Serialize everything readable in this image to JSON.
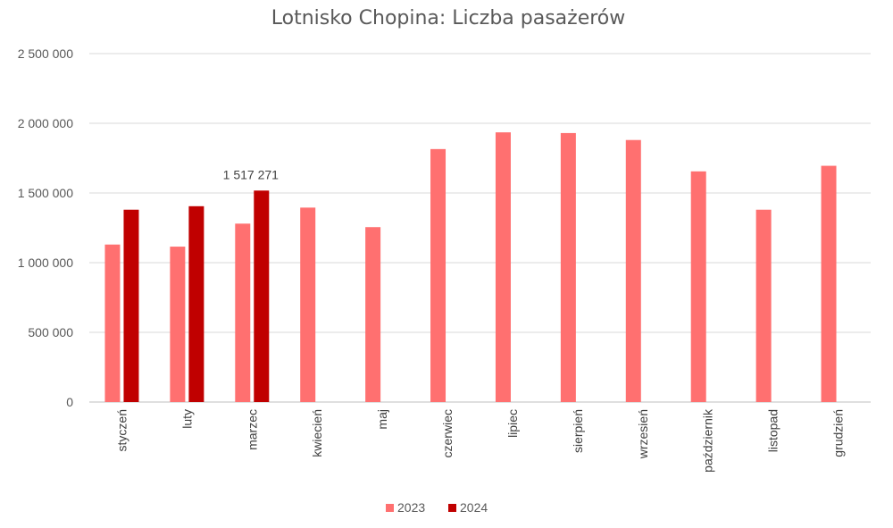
{
  "chart_data": {
    "type": "bar",
    "title": "Lotnisko Chopina: Liczba pasażerów",
    "categories": [
      "styczeń",
      "luty",
      "marzec",
      "kwiecień",
      "maj",
      "czerwiec",
      "lipiec",
      "sierpień",
      "wrzesień",
      "październik",
      "listopad",
      "grudzień"
    ],
    "series": [
      {
        "name": "2023",
        "color": "#ff7070",
        "values": [
          1130000,
          1115000,
          1280000,
          1395000,
          1255000,
          1815000,
          1935000,
          1930000,
          1880000,
          1655000,
          1380000,
          1695000
        ]
      },
      {
        "name": "2024",
        "color": "#c00000",
        "values": [
          1380000,
          1405000,
          1517271,
          null,
          null,
          null,
          null,
          null,
          null,
          null,
          null,
          null
        ]
      }
    ],
    "ylim": [
      0,
      2500000
    ],
    "yticks": [
      0,
      500000,
      1000000,
      1500000,
      2000000,
      2500000
    ],
    "ytick_labels": [
      "0",
      "500 000",
      "1 000 000",
      "1 500 000",
      "2 000 000",
      "2 500 000"
    ],
    "grid": true,
    "legend_position": "bottom",
    "annotations": [
      {
        "series": 1,
        "category_index": 2,
        "text": "1 517 271"
      }
    ]
  }
}
